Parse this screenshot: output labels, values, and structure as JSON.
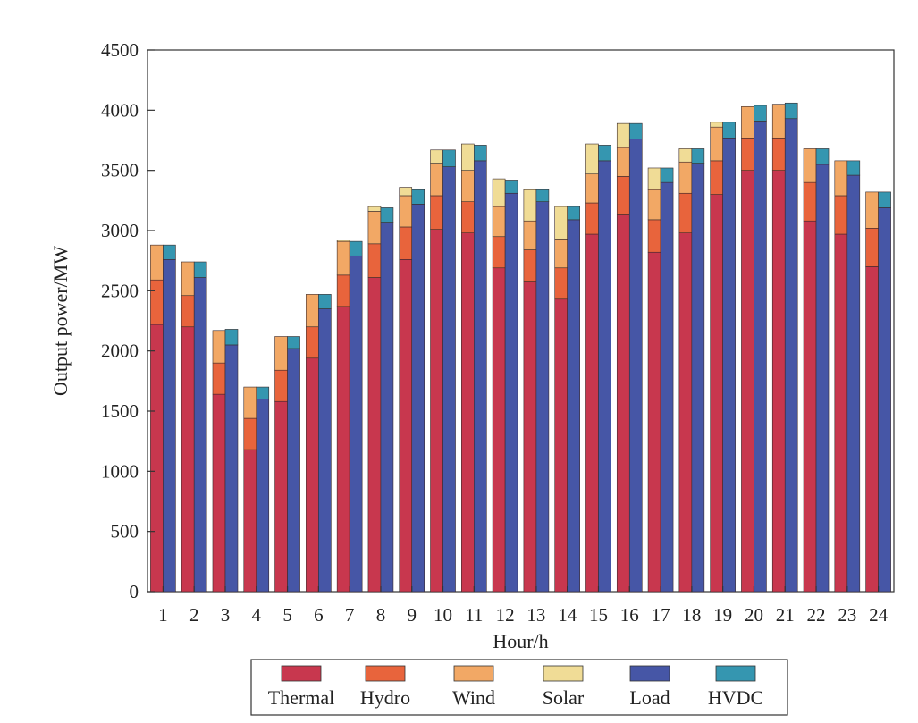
{
  "chart_data": {
    "type": "bar",
    "subtype": "paired-stacked",
    "title": "",
    "xlabel": "Hour/h",
    "ylabel": "Output power/MW",
    "ylim": [
      0,
      4500
    ],
    "yticks": [
      0,
      500,
      1000,
      1500,
      2000,
      2500,
      3000,
      3500,
      4000,
      4500
    ],
    "categories": [
      "1",
      "2",
      "3",
      "4",
      "5",
      "6",
      "7",
      "8",
      "9",
      "10",
      "11",
      "12",
      "13",
      "14",
      "15",
      "16",
      "17",
      "18",
      "19",
      "20",
      "21",
      "22",
      "23",
      "24"
    ],
    "legend_position": "bottom",
    "colors": {
      "Thermal": "#c8374e",
      "Hydro": "#e8643c",
      "Wind": "#f2a865",
      "Solar": "#f0dc96",
      "Load": "#4656a6",
      "HVDC": "#3596b0"
    },
    "generation_series": [
      {
        "name": "Thermal",
        "values": [
          2220,
          2200,
          1640,
          1180,
          1580,
          1940,
          2370,
          2610,
          2760,
          3010,
          2980,
          2690,
          2580,
          2430,
          2970,
          3130,
          2820,
          2980,
          3300,
          3500,
          3500,
          3080,
          2970,
          2700
        ]
      },
      {
        "name": "Hydro",
        "values": [
          370,
          260,
          260,
          260,
          260,
          260,
          260,
          280,
          270,
          280,
          260,
          260,
          260,
          260,
          260,
          320,
          270,
          330,
          280,
          270,
          270,
          320,
          320,
          320
        ]
      },
      {
        "name": "Wind",
        "values": [
          290,
          280,
          270,
          260,
          280,
          270,
          280,
          270,
          260,
          270,
          260,
          250,
          240,
          240,
          240,
          240,
          250,
          260,
          280,
          260,
          280,
          280,
          290,
          300
        ]
      },
      {
        "name": "Solar",
        "values": [
          0,
          0,
          0,
          0,
          0,
          0,
          10,
          40,
          70,
          110,
          220,
          230,
          260,
          270,
          250,
          200,
          180,
          110,
          40,
          0,
          0,
          0,
          0,
          0
        ]
      }
    ],
    "demand_series": [
      {
        "name": "Load",
        "values": [
          2760,
          2610,
          2050,
          1600,
          2020,
          2350,
          2790,
          3070,
          3220,
          3530,
          3580,
          3310,
          3240,
          3090,
          3580,
          3760,
          3400,
          3560,
          3770,
          3910,
          3930,
          3550,
          3460,
          3190
        ]
      },
      {
        "name": "HVDC",
        "values": [
          120,
          130,
          130,
          100,
          100,
          120,
          120,
          120,
          120,
          140,
          130,
          110,
          100,
          110,
          130,
          130,
          120,
          120,
          130,
          130,
          130,
          130,
          120,
          130
        ]
      }
    ],
    "legend": [
      "Thermal",
      "Hydro",
      "Wind",
      "Solar",
      "Load",
      "HVDC"
    ]
  }
}
